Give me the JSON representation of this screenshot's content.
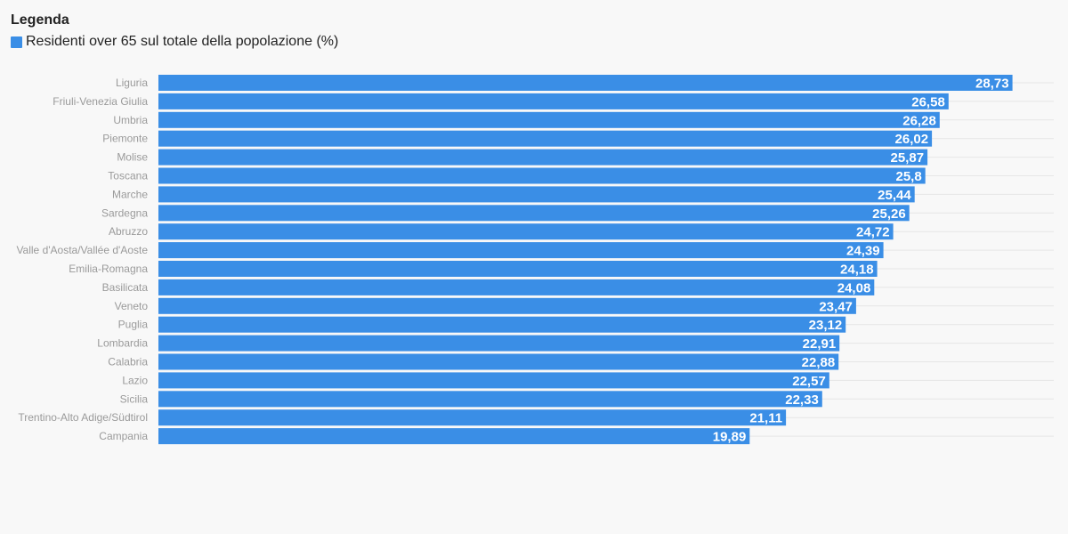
{
  "legend": {
    "title": "Legenda",
    "entries": [
      {
        "label": "Residenti over 65 sul totale della popolazione (%)",
        "color": "#3a8ee6"
      }
    ]
  },
  "chart_data": {
    "type": "bar",
    "orientation": "horizontal",
    "categories": [
      "Liguria",
      "Friuli-Venezia Giulia",
      "Umbria",
      "Piemonte",
      "Molise",
      "Toscana",
      "Marche",
      "Sardegna",
      "Abruzzo",
      "Valle d'Aosta/Vallée d'Aoste",
      "Emilia-Romagna",
      "Basilicata",
      "Veneto",
      "Puglia",
      "Lombardia",
      "Calabria",
      "Lazio",
      "Sicilia",
      "Trentino-Alto Adige/Südtirol",
      "Campania"
    ],
    "series": [
      {
        "name": "Residenti over 65 sul totale della popolazione (%)",
        "color": "#3a8ee6",
        "values": [
          28.73,
          26.58,
          26.28,
          26.02,
          25.87,
          25.8,
          25.44,
          25.26,
          24.72,
          24.39,
          24.18,
          24.08,
          23.47,
          23.12,
          22.91,
          22.88,
          22.57,
          22.33,
          21.11,
          19.89
        ],
        "value_labels": [
          "28,73",
          "26,58",
          "26,28",
          "26,02",
          "25,87",
          "25,8",
          "25,44",
          "25,26",
          "24,72",
          "24,39",
          "24,18",
          "24,08",
          "23,47",
          "23,12",
          "22,91",
          "22,88",
          "22,57",
          "22,33",
          "21,11",
          "19,89"
        ]
      }
    ],
    "xlim": [
      0,
      30
    ],
    "grid": true,
    "legend_position": "top-left"
  }
}
